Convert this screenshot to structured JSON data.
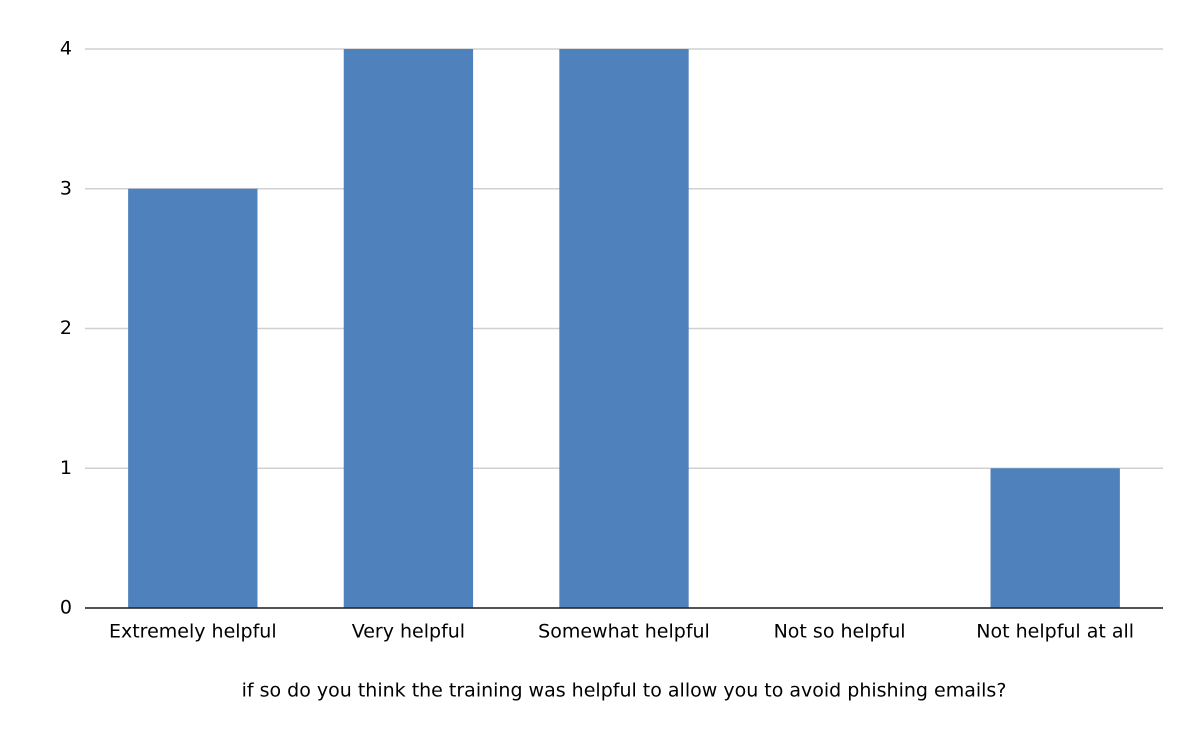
{
  "chart_data": {
    "type": "bar",
    "x_label": "if so do you think the training was helpful to allow you to avoid phishing emails?",
    "categories": [
      "Extremely helpful",
      "Very helpful",
      "Somewhat helpful",
      "Not so helpful",
      "Not helpful at all"
    ],
    "values": [
      3,
      4,
      4,
      0,
      1
    ],
    "color": "#4f81bd",
    "ylim": [
      0,
      4
    ],
    "yticks": [
      0,
      1,
      2,
      3,
      4
    ],
    "grid": true
  }
}
